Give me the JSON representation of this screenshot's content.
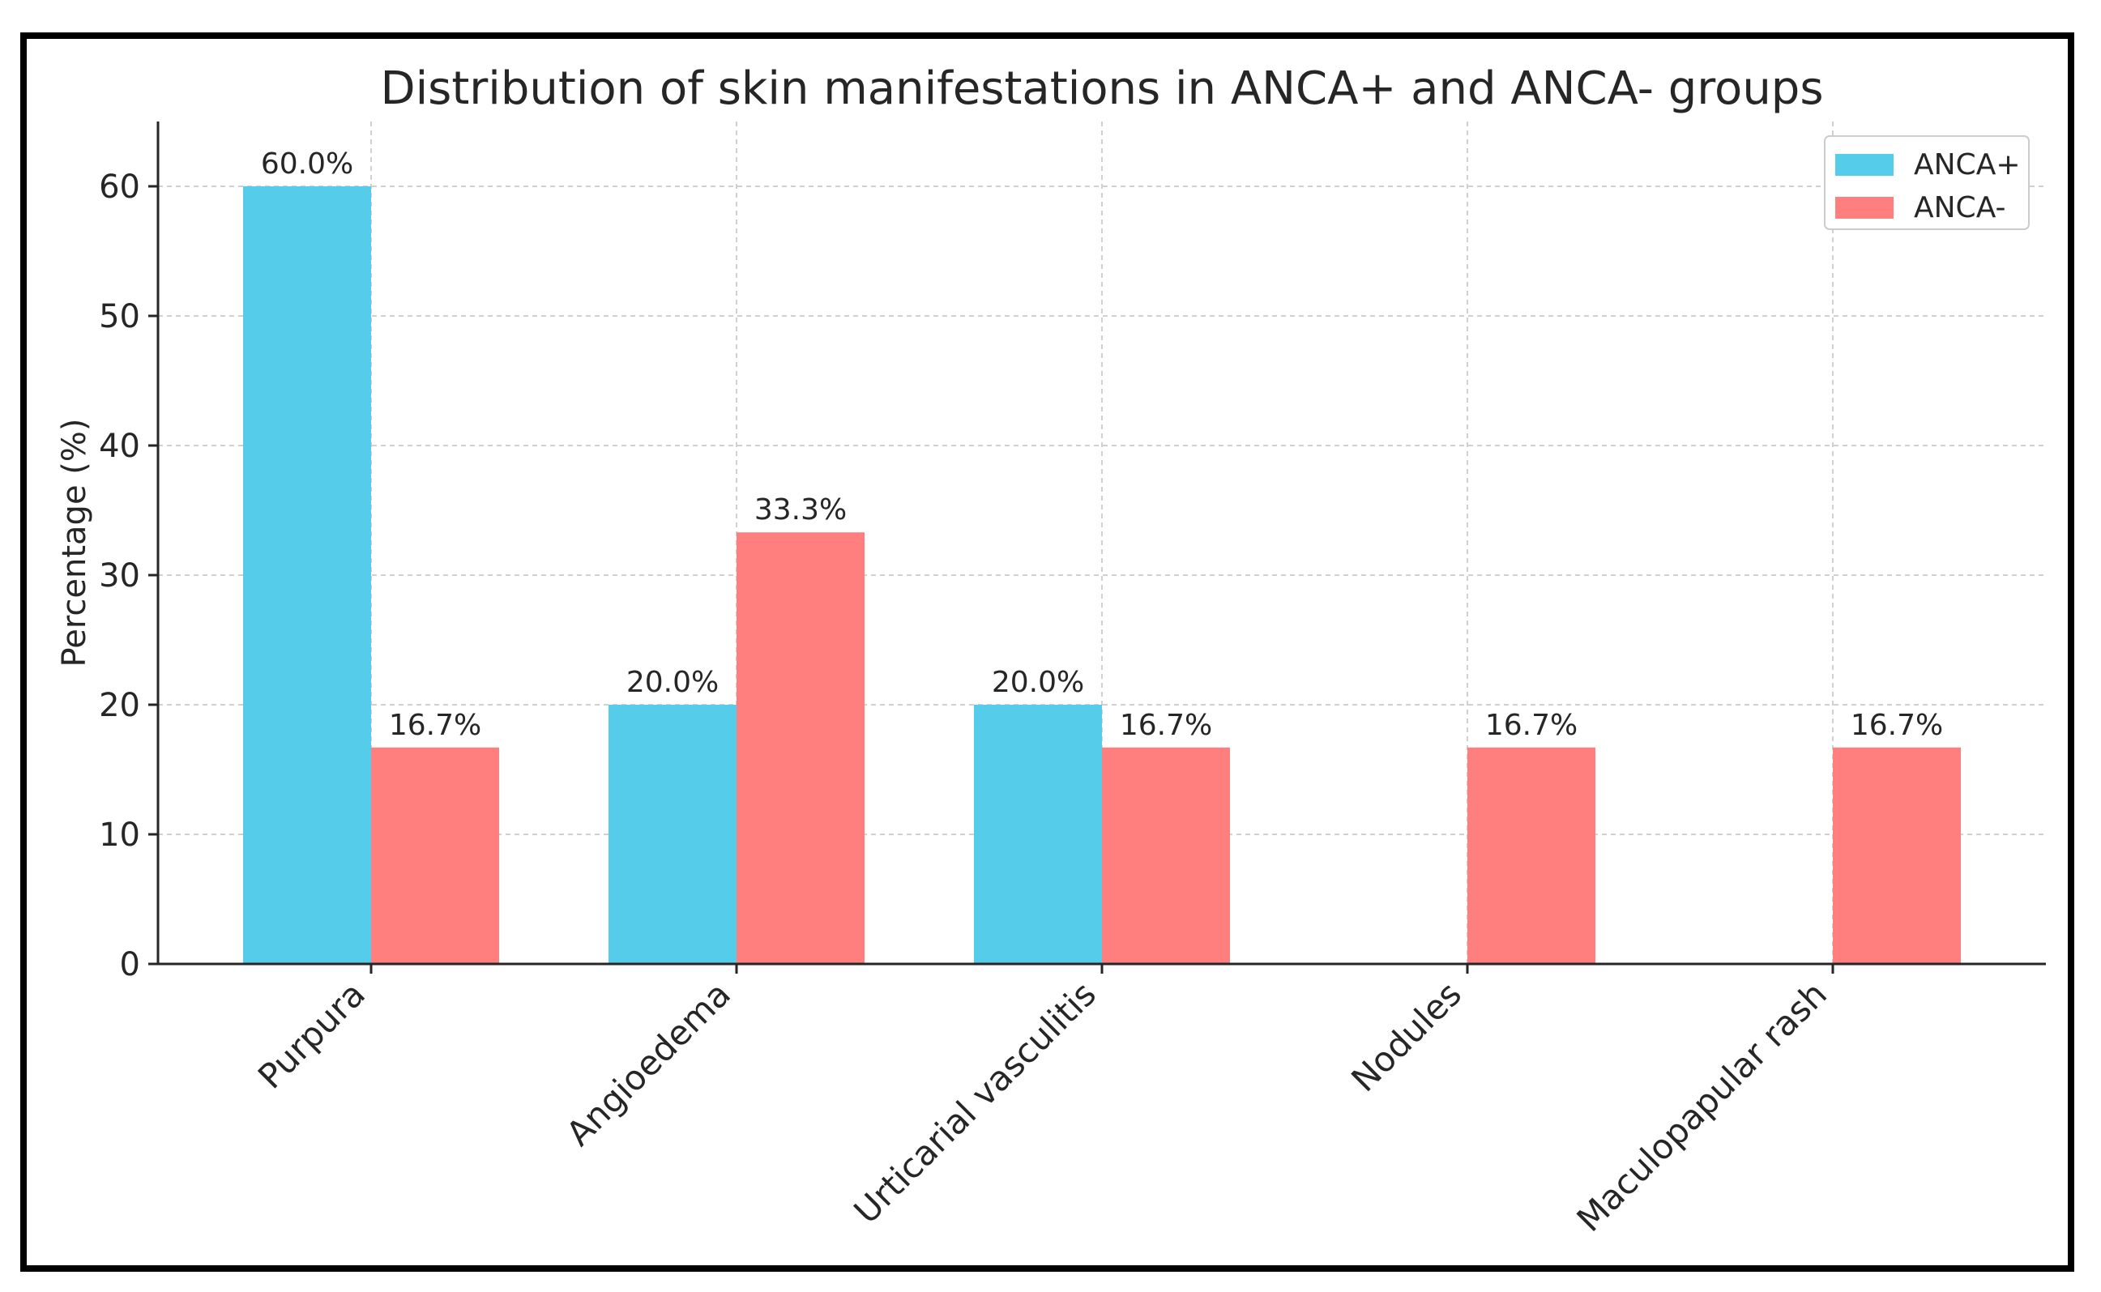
{
  "chart_data": {
    "type": "bar",
    "title": "Distribution of skin manifestations in ANCA+ and ANCA- groups",
    "xlabel": "",
    "ylabel": "Percentage (%)",
    "ylim": [
      0,
      65
    ],
    "yticks": [
      0,
      10,
      20,
      30,
      40,
      50,
      60
    ],
    "grid": true,
    "legend_position": "top-right",
    "categories": [
      "Purpura",
      "Angioedema",
      "Urticarial vasculitis",
      "Nodules",
      "Maculopapular rash"
    ],
    "series": [
      {
        "name": "ANCA+",
        "color": "#56CCEB",
        "values": [
          60.0,
          20.0,
          20.0,
          0,
          0
        ],
        "labels": [
          "60.0%",
          "20.0%",
          "20.0%",
          "",
          ""
        ]
      },
      {
        "name": "ANCA-",
        "color": "#FF7F7F",
        "values": [
          16.7,
          33.3,
          16.7,
          16.7,
          16.7
        ],
        "labels": [
          "16.7%",
          "33.3%",
          "16.7%",
          "16.7%",
          "16.7%"
        ]
      }
    ]
  }
}
